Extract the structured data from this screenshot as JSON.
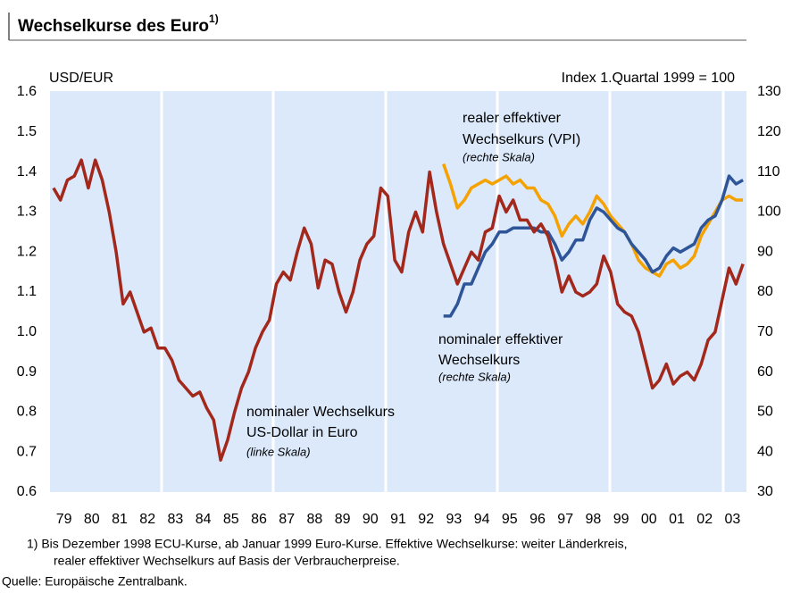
{
  "chart_data": {
    "type": "line",
    "title": "Wechselkurse des Euro",
    "title_sup": "1)",
    "y_label": "USD/EUR",
    "y2_label": "Index 1.Quartal 1999 = 100",
    "annotations": [
      "realer effektiver",
      "Wechselkurs (VPI)",
      "(rechte Skala)",
      "nominaler effektiver",
      "Wechselkurs",
      "(rechte Skala)",
      "nominaler Wechselkurs",
      "US-Dollar in Euro",
      "(linke Skala)"
    ],
    "footnote": [
      "1) Bis Dezember 1998 ECU-Kurse, ab Januar 1999 Euro-Kurse. Effektive Wechselkurse: weiter Länderkreis,",
      "realer effektiver Wechselkurs auf Basis der Verbraucherpreise."
    ],
    "source": "Quelle: Europäische Zentralbank.",
    "xlim": [
      1979,
      2004
    ],
    "xticks": [
      {
        "value": 1979.5,
        "label": "79"
      },
      {
        "value": 1980.5,
        "label": "80"
      },
      {
        "value": 1981.5,
        "label": "81"
      },
      {
        "value": 1982.5,
        "label": "82"
      },
      {
        "value": 1983.5,
        "label": "83"
      },
      {
        "value": 1984.5,
        "label": "84"
      },
      {
        "value": 1985.5,
        "label": "85"
      },
      {
        "value": 1986.5,
        "label": "86"
      },
      {
        "value": 1987.5,
        "label": "87"
      },
      {
        "value": 1988.5,
        "label": "88"
      },
      {
        "value": 1989.5,
        "label": "89"
      },
      {
        "value": 1990.5,
        "label": "90"
      },
      {
        "value": 1991.5,
        "label": "91"
      },
      {
        "value": 1992.5,
        "label": "92"
      },
      {
        "value": 1993.5,
        "label": "93"
      },
      {
        "value": 1994.5,
        "label": "94"
      },
      {
        "value": 1995.5,
        "label": "95"
      },
      {
        "value": 1996.5,
        "label": "96"
      },
      {
        "value": 1997.5,
        "label": "97"
      },
      {
        "value": 1998.5,
        "label": "98"
      },
      {
        "value": 1999.5,
        "label": "99"
      },
      {
        "value": 2000.5,
        "label": "00"
      },
      {
        "value": 2001.5,
        "label": "01"
      },
      {
        "value": 2002.5,
        "label": "02"
      },
      {
        "value": 2003.5,
        "label": "03"
      }
    ],
    "ylim": [
      0.6,
      1.6
    ],
    "yticks": [
      0.6,
      0.7,
      0.8,
      0.9,
      {
        "value": 1,
        "label": "1.0"
      },
      1.1,
      1.2,
      1.3,
      1.4,
      1.5,
      1.6
    ],
    "y2lim": [
      30,
      130
    ],
    "y2ticks": [
      30,
      40,
      50,
      60,
      70,
      80,
      90,
      100,
      110,
      120,
      130
    ],
    "series": [
      {
        "name": "nominaler Wechselkurs US-Dollar in Euro",
        "color": "#a3281c",
        "x": [
          1979.125,
          1979.375,
          1979.625,
          1979.875,
          1980.125,
          1980.375,
          1980.625,
          1980.875,
          1981.125,
          1981.375,
          1981.625,
          1981.875,
          1982.125,
          1982.375,
          1982.625,
          1982.875,
          1983.125,
          1983.375,
          1983.625,
          1983.875,
          1984.125,
          1984.375,
          1984.625,
          1984.875,
          1985.125,
          1985.375,
          1985.625,
          1985.875,
          1986.125,
          1986.375,
          1986.625,
          1986.875,
          1987.125,
          1987.375,
          1987.625,
          1987.875,
          1988.125,
          1988.375,
          1988.625,
          1988.875,
          1989.125,
          1989.375,
          1989.625,
          1989.875,
          1990.125,
          1990.375,
          1990.625,
          1990.875,
          1991.125,
          1991.375,
          1991.625,
          1991.875,
          1992.125,
          1992.375,
          1992.625,
          1992.875,
          1993.125,
          1993.375,
          1993.625,
          1993.875,
          1994.125,
          1994.375,
          1994.625,
          1994.875,
          1995.125,
          1995.375,
          1995.625,
          1995.875,
          1996.125,
          1996.375,
          1996.625,
          1996.875,
          1997.125,
          1997.375,
          1997.625,
          1997.875,
          1998.125,
          1998.375,
          1998.625,
          1998.875,
          1999.125,
          1999.375,
          1999.625,
          1999.875,
          2000.125,
          2000.375,
          2000.625,
          2000.875,
          2001.125,
          2001.375,
          2001.625,
          2001.875,
          2002.125,
          2002.375,
          2002.625,
          2002.875,
          2003.125,
          2003.375,
          2003.625,
          2003.875
        ],
        "values": [
          1.36,
          1.33,
          1.38,
          1.39,
          1.43,
          1.36,
          1.43,
          1.38,
          1.3,
          1.2,
          1.07,
          1.1,
          1.05,
          1.0,
          1.01,
          0.96,
          0.96,
          0.93,
          0.88,
          0.86,
          0.84,
          0.85,
          0.81,
          0.78,
          0.68,
          0.73,
          0.8,
          0.86,
          0.9,
          0.96,
          1.0,
          1.03,
          1.12,
          1.15,
          1.13,
          1.2,
          1.26,
          1.22,
          1.11,
          1.18,
          1.17,
          1.1,
          1.05,
          1.1,
          1.18,
          1.22,
          1.24,
          1.36,
          1.34,
          1.18,
          1.15,
          1.25,
          1.3,
          1.25,
          1.4,
          1.3,
          1.22,
          1.17,
          1.12,
          1.16,
          1.2,
          1.18,
          1.25,
          1.26,
          1.34,
          1.3,
          1.33,
          1.28,
          1.28,
          1.25,
          1.27,
          1.24,
          1.18,
          1.1,
          1.14,
          1.1,
          1.09,
          1.1,
          1.12,
          1.19,
          1.15,
          1.07,
          1.05,
          1.04,
          1.0,
          0.93,
          0.86,
          0.88,
          0.92,
          0.87,
          0.89,
          0.9,
          0.88,
          0.92,
          0.98,
          1.0,
          1.08,
          1.16,
          1.12,
          1.17
        ]
      },
      {
        "name": "nominaler effektiver Wechselkurs",
        "color": "#2e5597",
        "axis": "y2",
        "x": [
          1993.125,
          1993.375,
          1993.625,
          1993.875,
          1994.125,
          1994.375,
          1994.625,
          1994.875,
          1995.125,
          1995.375,
          1995.625,
          1995.875,
          1996.125,
          1996.375,
          1996.625,
          1996.875,
          1997.125,
          1997.375,
          1997.625,
          1997.875,
          1998.125,
          1998.375,
          1998.625,
          1998.875,
          1999.125,
          1999.375,
          1999.625,
          1999.875,
          2000.125,
          2000.375,
          2000.625,
          2000.875,
          2001.125,
          2001.375,
          2001.625,
          2001.875,
          2002.125,
          2002.375,
          2002.625,
          2002.875,
          2003.125,
          2003.375,
          2003.625,
          2003.875
        ],
        "values": [
          74,
          74,
          77,
          82,
          82,
          86,
          90,
          92,
          95,
          95,
          96,
          96,
          96,
          96,
          95,
          95,
          92,
          88,
          90,
          93,
          93,
          98,
          101,
          100,
          98,
          96,
          95,
          92,
          90,
          88,
          85,
          86,
          89,
          91,
          90,
          91,
          92,
          96,
          98,
          99,
          103,
          109,
          107,
          108
        ]
      },
      {
        "name": "realer effektiver Wechselkurs (VPI)",
        "color": "#f5a100",
        "axis": "y2",
        "x": [
          1993.125,
          1993.375,
          1993.625,
          1993.875,
          1994.125,
          1994.375,
          1994.625,
          1994.875,
          1995.125,
          1995.375,
          1995.625,
          1995.875,
          1996.125,
          1996.375,
          1996.625,
          1996.875,
          1997.125,
          1997.375,
          1997.625,
          1997.875,
          1998.125,
          1998.375,
          1998.625,
          1998.875,
          1999.125,
          1999.375,
          1999.625,
          1999.875,
          2000.125,
          2000.375,
          2000.625,
          2000.875,
          2001.125,
          2001.375,
          2001.625,
          2001.875,
          2002.125,
          2002.375,
          2002.625,
          2002.875,
          2003.125,
          2003.375,
          2003.625,
          2003.875
        ],
        "values": [
          112,
          107,
          101,
          103,
          106,
          107,
          108,
          107,
          108,
          109,
          107,
          108,
          106,
          106,
          103,
          102,
          99,
          94,
          97,
          99,
          97,
          100,
          104,
          102,
          99,
          97,
          95,
          92,
          88,
          86,
          85,
          84,
          87,
          88,
          86,
          87,
          89,
          94,
          97,
          100,
          103,
          104,
          103,
          103
        ]
      }
    ]
  }
}
